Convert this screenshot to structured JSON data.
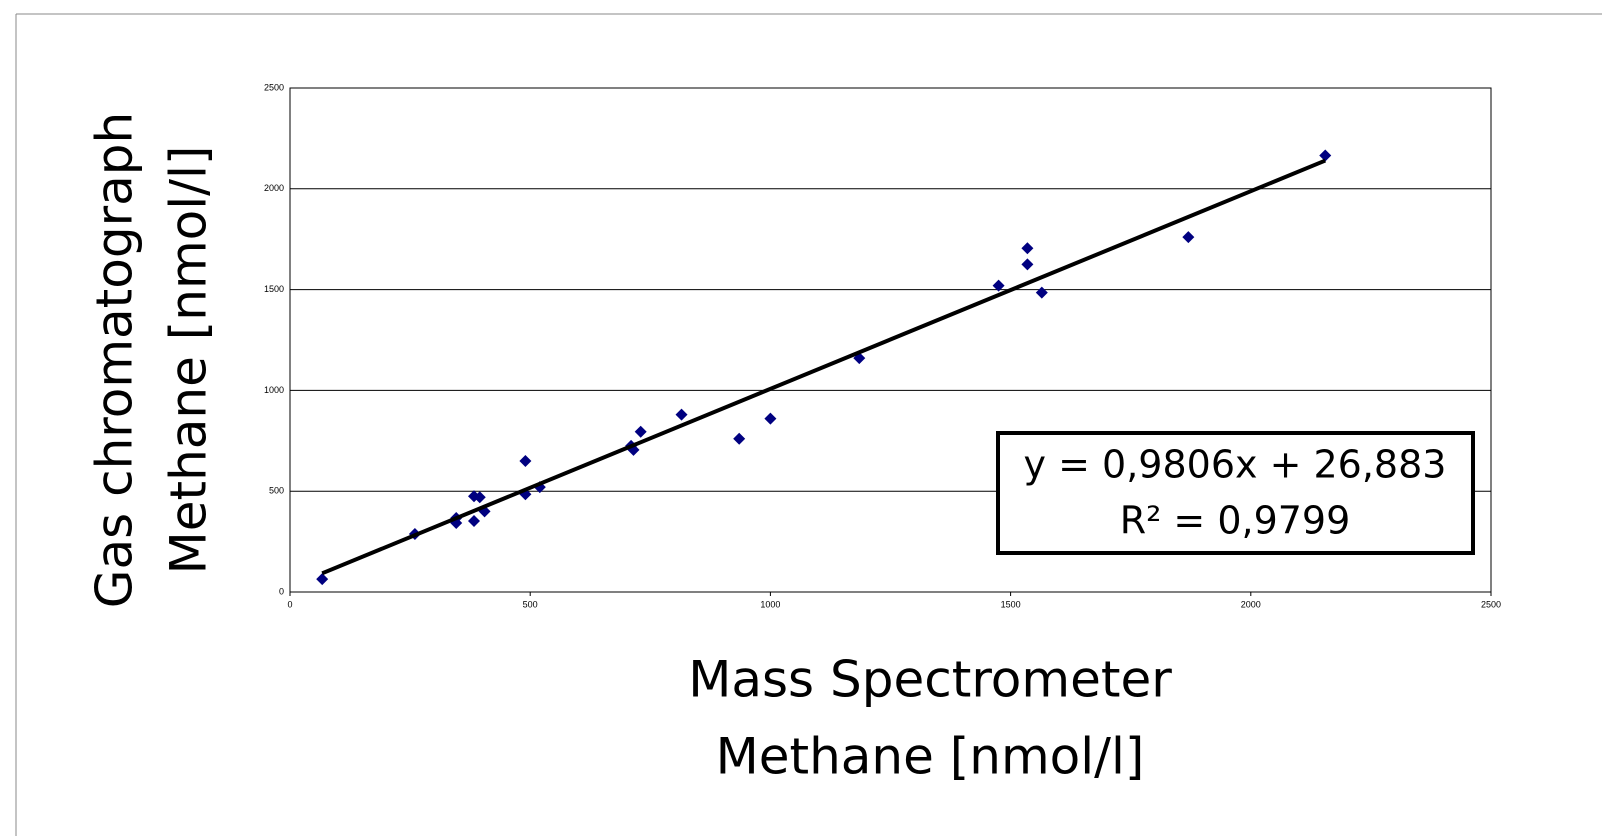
{
  "chart_data": {
    "type": "scatter",
    "xlabel": [
      "Mass Spectrometer",
      "Methane [nmol/l]"
    ],
    "ylabel": [
      "Gas chromatograph",
      "Methane [nmol/l]"
    ],
    "series": [
      {
        "color": "#000080",
        "x": [
          67,
          260,
          346,
          346,
          383,
          383,
          395,
          405,
          490,
          490,
          520,
          710,
          715,
          730,
          815,
          935,
          1000,
          1185,
          1475,
          1535,
          1535,
          1565,
          1870,
          2155
        ],
        "values": [
          64,
          288,
          367,
          342,
          352,
          475,
          470,
          400,
          650,
          485,
          520,
          725,
          705,
          795,
          880,
          760,
          860,
          1160,
          1520,
          1705,
          1625,
          1485,
          1760,
          2165
        ]
      }
    ],
    "trendline": {
      "slope": 0.9806,
      "intercept": 26.883,
      "x": [
        67,
        2155
      ],
      "color": "#000000",
      "labels": [
        "y = 0,9806x + 26,883",
        "R² = 0,9799"
      ]
    },
    "xlim": [
      0,
      2500
    ],
    "xticks": [
      0,
      500,
      1000,
      1500,
      2000,
      2500
    ],
    "ylim": [
      0,
      2500
    ],
    "yticks": [
      0,
      500,
      1000,
      1500,
      2000,
      2500
    ],
    "grid": true
  }
}
